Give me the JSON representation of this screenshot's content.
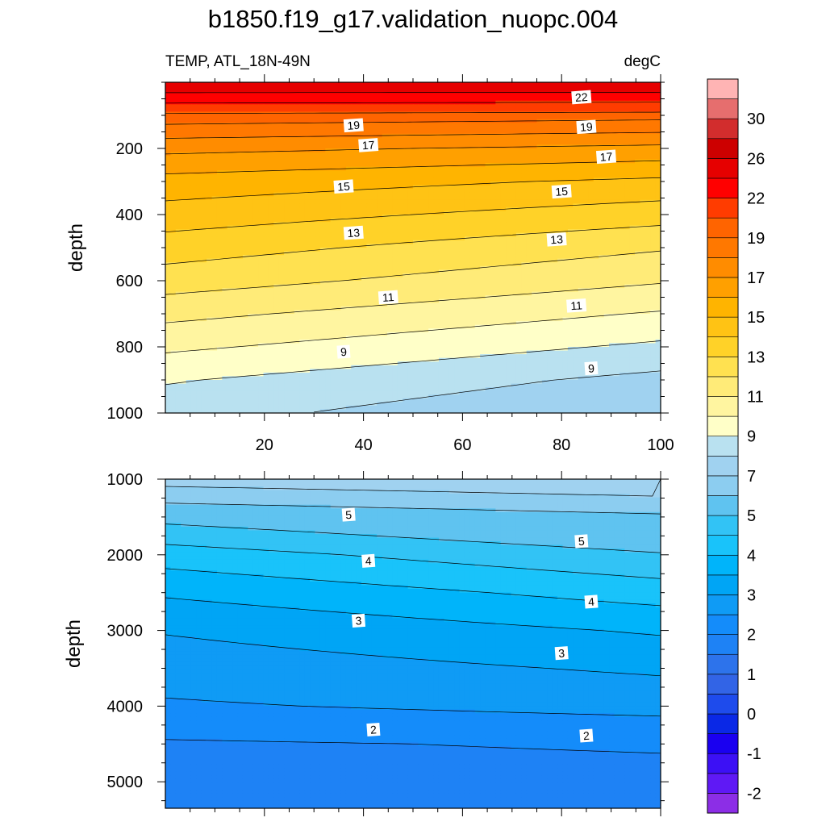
{
  "chart_data": {
    "type": "heatmap",
    "title": "b1850.f19_g17.validation_nuopc.004",
    "left_string": "TEMP, ATL_18N-49N",
    "right_string": "degC",
    "panels": [
      {
        "id": "upper",
        "ylabel": "depth",
        "xlim": [
          0,
          100
        ],
        "ylim": [
          1000,
          0
        ],
        "xticks": [
          20,
          40,
          60,
          80,
          100
        ],
        "yticks": [
          200,
          400,
          600,
          800,
          1000
        ],
        "contour_labels": [
          {
            "text": "22",
            "x": 84,
            "y": 45
          },
          {
            "text": "19",
            "x": 38,
            "y": 130
          },
          {
            "text": "19",
            "x": 85,
            "y": 135
          },
          {
            "text": "17",
            "x": 41,
            "y": 190
          },
          {
            "text": "17",
            "x": 89,
            "y": 225
          },
          {
            "text": "15",
            "x": 36,
            "y": 315
          },
          {
            "text": "15",
            "x": 80,
            "y": 330
          },
          {
            "text": "13",
            "x": 38,
            "y": 455
          },
          {
            "text": "13",
            "x": 79,
            "y": 475
          },
          {
            "text": "11",
            "x": 45,
            "y": 650
          },
          {
            "text": "11",
            "x": 83,
            "y": 675
          },
          {
            "text": "9",
            "x": 36,
            "y": 815
          },
          {
            "text": "9",
            "x": 86,
            "y": 865
          }
        ]
      },
      {
        "id": "lower",
        "ylabel": "depth",
        "xlim": [
          0,
          100
        ],
        "ylim": [
          5350,
          1000
        ],
        "yticks": [
          1000,
          2000,
          3000,
          4000,
          5000
        ],
        "contour_labels": [
          {
            "text": "5",
            "x": 37,
            "y": 1470
          },
          {
            "text": "5",
            "x": 84,
            "y": 1820
          },
          {
            "text": "4",
            "x": 41,
            "y": 2080
          },
          {
            "text": "4",
            "x": 86,
            "y": 2620
          },
          {
            "text": "3",
            "x": 39,
            "y": 2870
          },
          {
            "text": "3",
            "x": 80,
            "y": 3300
          },
          {
            "text": "2",
            "x": 42,
            "y": 4310
          },
          {
            "text": "2",
            "x": 85,
            "y": 4390
          }
        ]
      }
    ],
    "colorbar": {
      "levels": [
        -2,
        -1.5,
        -1,
        -0.5,
        0,
        0.5,
        1,
        1.5,
        2,
        2.5,
        3,
        3.5,
        4,
        4.5,
        5,
        6,
        7,
        8,
        9,
        10,
        11,
        12,
        13,
        14,
        15,
        16,
        17,
        18,
        19,
        20,
        22,
        24,
        26,
        28,
        30,
        32
      ],
      "colors": [
        "#8c2ee6",
        "#5f19f5",
        "#3c10f5",
        "#1a00f0",
        "#0a28e6",
        "#1e4bec",
        "#3264e6",
        "#2d73eb",
        "#1e82f5",
        "#148cfa",
        "#0f9bf5",
        "#00a5f5",
        "#00b4fa",
        "#19c3fa",
        "#32c3f5",
        "#5fc3f0",
        "#8ccdf0",
        "#a0d2f0",
        "#b9e1f0",
        "#ffffc8",
        "#fff5a0",
        "#ffeb78",
        "#ffe150",
        "#ffd228",
        "#ffc314",
        "#ffb400",
        "#ffa000",
        "#ff8c00",
        "#ff7800",
        "#ff6400",
        "#ff3c00",
        "#ff0000",
        "#e60000",
        "#cd0000",
        "#d22d2d",
        "#e66e6e",
        "#ffb4b4"
      ],
      "tick_labels": [
        "-2",
        "-1",
        "0",
        "1",
        "2",
        "3",
        "4",
        "5",
        "7",
        "9",
        "11",
        "13",
        "15",
        "17",
        "19",
        "22",
        "26",
        "30"
      ]
    }
  }
}
